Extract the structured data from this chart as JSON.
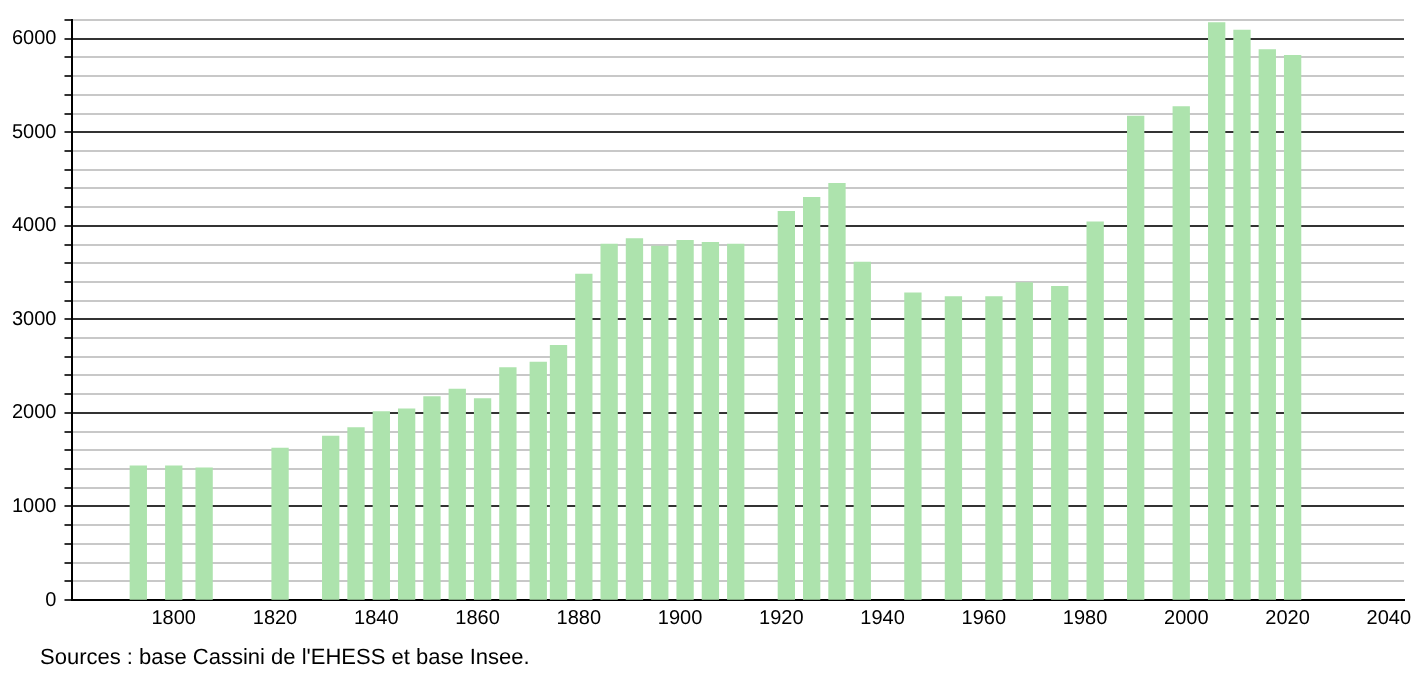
{
  "chart_data": {
    "type": "bar",
    "x": [
      1793,
      1800,
      1806,
      1821,
      1831,
      1836,
      1841,
      1846,
      1851,
      1856,
      1861,
      1866,
      1872,
      1876,
      1881,
      1886,
      1891,
      1896,
      1901,
      1906,
      1911,
      1921,
      1926,
      1931,
      1936,
      1946,
      1954,
      1962,
      1968,
      1975,
      1982,
      1990,
      1999,
      2006,
      2011,
      2016,
      2021
    ],
    "values": [
      1430,
      1430,
      1410,
      1620,
      1750,
      1840,
      2010,
      2040,
      2170,
      2250,
      2150,
      2480,
      2540,
      2720,
      3480,
      3800,
      3860,
      3780,
      3840,
      3820,
      3800,
      4150,
      4300,
      4450,
      3610,
      3280,
      3240,
      3240,
      3390,
      3350,
      4040,
      5170,
      5270,
      6170,
      6090,
      5880,
      5820
    ],
    "color": "#ade3ad",
    "xlim": [
      1780,
      2043
    ],
    "xticks": [
      1800,
      1820,
      1840,
      1860,
      1880,
      1900,
      1920,
      1940,
      1960,
      1980,
      2000,
      2020,
      2040
    ],
    "ylim": [
      0,
      6200
    ],
    "yticks": [
      0,
      {
        "value": 200,
        "label": null
      },
      {
        "value": 400,
        "label": null
      },
      {
        "value": 600,
        "label": null
      },
      {
        "value": 800,
        "label": null
      },
      1000,
      {
        "value": 1200,
        "label": null
      },
      {
        "value": 1400,
        "label": null
      },
      {
        "value": 1600,
        "label": null
      },
      {
        "value": 1800,
        "label": null
      },
      2000,
      {
        "value": 2200,
        "label": null
      },
      {
        "value": 2400,
        "label": null
      },
      {
        "value": 2600,
        "label": null
      },
      {
        "value": 2800,
        "label": null
      },
      3000,
      {
        "value": 3200,
        "label": null
      },
      {
        "value": 3400,
        "label": null
      },
      {
        "value": 3600,
        "label": null
      },
      {
        "value": 3800,
        "label": null
      },
      4000,
      {
        "value": 4200,
        "label": null
      },
      {
        "value": 4400,
        "label": null
      },
      {
        "value": 4600,
        "label": null
      },
      {
        "value": 4800,
        "label": null
      },
      5000,
      {
        "value": 5200,
        "label": null
      },
      {
        "value": 5400,
        "label": null
      },
      {
        "value": 5600,
        "label": null
      },
      {
        "value": 5800,
        "label": null
      },
      6000,
      {
        "value": 6200,
        "label": null
      }
    ],
    "grid": "y",
    "legend": false,
    "annotations": [
      "Sources : base Cassini de l'EHESS et base Insee."
    ]
  }
}
